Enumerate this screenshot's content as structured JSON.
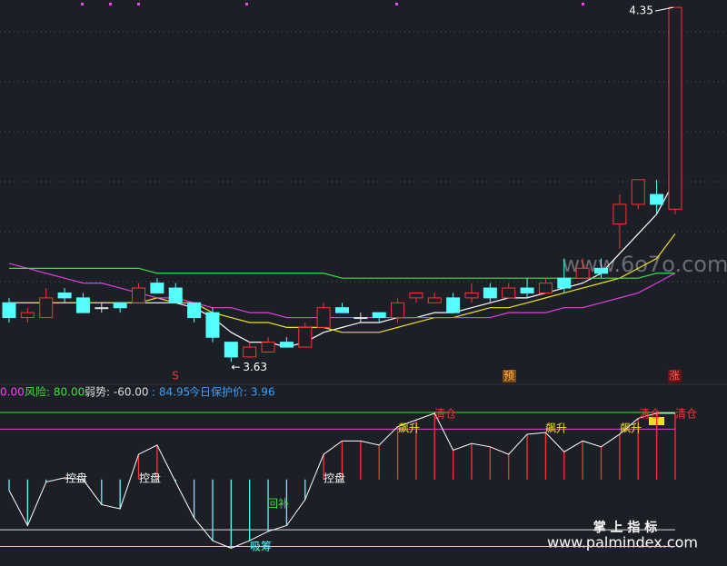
{
  "chart_data": [
    {
      "type": "candlestick",
      "ylim": [
        3.59,
        4.365
      ],
      "up_color": "#ff3232",
      "down_color": "#54ffff",
      "doji_color": "#e0e0e0",
      "candles": [
        {
          "open": 3.75,
          "high": 3.76,
          "low": 3.71,
          "close": 3.72
        },
        {
          "open": 3.72,
          "high": 3.74,
          "low": 3.71,
          "close": 3.73
        },
        {
          "open": 3.72,
          "high": 3.78,
          "low": 3.72,
          "close": 3.76
        },
        {
          "open": 3.77,
          "high": 3.78,
          "low": 3.75,
          "close": 3.76
        },
        {
          "open": 3.76,
          "high": 3.77,
          "low": 3.73,
          "close": 3.73
        },
        {
          "open": 3.74,
          "high": 3.75,
          "low": 3.73,
          "close": 3.74
        },
        {
          "open": 3.75,
          "high": 3.75,
          "low": 3.73,
          "close": 3.74
        },
        {
          "open": 3.75,
          "high": 3.79,
          "low": 3.75,
          "close": 3.78
        },
        {
          "open": 3.79,
          "high": 3.8,
          "low": 3.77,
          "close": 3.77
        },
        {
          "open": 3.78,
          "high": 3.79,
          "low": 3.75,
          "close": 3.75
        },
        {
          "open": 3.75,
          "high": 3.75,
          "low": 3.71,
          "close": 3.72
        },
        {
          "open": 3.73,
          "high": 3.74,
          "low": 3.67,
          "close": 3.68
        },
        {
          "open": 3.67,
          "high": 3.67,
          "low": 3.63,
          "close": 3.64
        },
        {
          "open": 3.64,
          "high": 3.67,
          "low": 3.64,
          "close": 3.66
        },
        {
          "open": 3.65,
          "high": 3.68,
          "low": 3.65,
          "close": 3.67
        },
        {
          "open": 3.67,
          "high": 3.68,
          "low": 3.66,
          "close": 3.66
        },
        {
          "open": 3.66,
          "high": 3.71,
          "low": 3.66,
          "close": 3.7
        },
        {
          "open": 3.7,
          "high": 3.75,
          "low": 3.7,
          "close": 3.74
        },
        {
          "open": 3.74,
          "high": 3.75,
          "low": 3.73,
          "close": 3.73
        },
        {
          "open": 3.72,
          "high": 3.73,
          "low": 3.71,
          "close": 3.72
        },
        {
          "open": 3.73,
          "high": 3.73,
          "low": 3.71,
          "close": 3.72
        },
        {
          "open": 3.72,
          "high": 3.76,
          "low": 3.71,
          "close": 3.75
        },
        {
          "open": 3.76,
          "high": 3.77,
          "low": 3.75,
          "close": 3.77
        },
        {
          "open": 3.75,
          "high": 3.77,
          "low": 3.75,
          "close": 3.76
        },
        {
          "open": 3.76,
          "high": 3.77,
          "low": 3.73,
          "close": 3.73
        },
        {
          "open": 3.76,
          "high": 3.79,
          "low": 3.75,
          "close": 3.77
        },
        {
          "open": 3.78,
          "high": 3.79,
          "low": 3.75,
          "close": 3.76
        },
        {
          "open": 3.76,
          "high": 3.79,
          "low": 3.76,
          "close": 3.78
        },
        {
          "open": 3.78,
          "high": 3.8,
          "low": 3.76,
          "close": 3.77
        },
        {
          "open": 3.77,
          "high": 3.8,
          "low": 3.77,
          "close": 3.79
        },
        {
          "open": 3.8,
          "high": 3.84,
          "low": 3.77,
          "close": 3.78
        },
        {
          "open": 3.8,
          "high": 3.84,
          "low": 3.8,
          "close": 3.82
        },
        {
          "open": 3.82,
          "high": 3.84,
          "low": 3.8,
          "close": 3.81
        },
        {
          "open": 3.91,
          "high": 3.97,
          "low": 3.86,
          "close": 3.95
        },
        {
          "open": 3.95,
          "high": 4.0,
          "low": 3.94,
          "close": 4.0
        },
        {
          "open": 3.97,
          "high": 4.0,
          "low": 3.93,
          "close": 3.95
        },
        {
          "open": 3.94,
          "high": 4.35,
          "low": 3.93,
          "close": 4.35
        }
      ],
      "series": [
        {
          "color": "#ffffff",
          "values": [
            3.75,
            3.75,
            3.75,
            3.75,
            3.75,
            3.75,
            3.75,
            3.75,
            3.75,
            3.75,
            3.74,
            3.72,
            3.69,
            3.67,
            3.67,
            3.66,
            3.67,
            3.69,
            3.7,
            3.71,
            3.71,
            3.72,
            3.72,
            3.73,
            3.73,
            3.74,
            3.75,
            3.76,
            3.76,
            3.77,
            3.78,
            3.79,
            3.81,
            3.85,
            3.89,
            3.93,
            4.0
          ]
        },
        {
          "color": "#f0e020",
          "values": [
            3.75,
            3.75,
            3.75,
            3.75,
            3.75,
            3.75,
            3.75,
            3.75,
            3.76,
            3.75,
            3.75,
            3.73,
            3.72,
            3.71,
            3.71,
            3.7,
            3.7,
            3.7,
            3.69,
            3.69,
            3.69,
            3.7,
            3.71,
            3.72,
            3.72,
            3.73,
            3.74,
            3.74,
            3.75,
            3.76,
            3.77,
            3.78,
            3.79,
            3.8,
            3.82,
            3.84,
            3.89
          ]
        },
        {
          "color": "#e040e0",
          "values": [
            3.83,
            3.82,
            3.81,
            3.8,
            3.79,
            3.79,
            3.78,
            3.77,
            3.76,
            3.76,
            3.75,
            3.74,
            3.74,
            3.73,
            3.73,
            3.72,
            3.72,
            3.72,
            3.72,
            3.72,
            3.72,
            3.72,
            3.72,
            3.72,
            3.72,
            3.72,
            3.72,
            3.73,
            3.73,
            3.73,
            3.74,
            3.74,
            3.75,
            3.76,
            3.77,
            3.79,
            3.81
          ]
        },
        {
          "color": "#40e040",
          "values": [
            3.82,
            3.82,
            3.82,
            3.82,
            3.82,
            3.82,
            3.82,
            3.82,
            3.81,
            3.81,
            3.81,
            3.81,
            3.81,
            3.81,
            3.81,
            3.81,
            3.81,
            3.81,
            3.8,
            3.8,
            3.8,
            3.8,
            3.8,
            3.8,
            3.8,
            3.8,
            3.8,
            3.8,
            3.8,
            3.8,
            3.8,
            3.8,
            3.8,
            3.8,
            3.8,
            3.81,
            3.81
          ]
        }
      ],
      "signals": [
        {
          "text": "S",
          "color": "#ff3232"
        },
        {
          "text": "预",
          "color": "#ffb050"
        },
        {
          "text": "涨",
          "color": "#ff6060"
        }
      ],
      "watermark": "www.6o7o.com"
    },
    {
      "type": "indicator",
      "ylim": [
        -80,
        126
      ],
      "baseline": 20,
      "up_color": "#ff3232",
      "down_color": "#54ffff",
      "line_color": "#ffffff",
      "header": [
        {
          "text": "0.00",
          "color": "#ff40ff"
        },
        {
          "text": "风险: 80.00",
          "color": "#40e040"
        },
        {
          "text": "弱势: -60.00",
          "color": "#dddddd"
        },
        {
          "text": ": 84.95",
          "color": "#3aa0ff"
        },
        {
          "text": "今日保护价: 3.96",
          "color": "#3aa0ff"
        }
      ],
      "reference_lines": [
        {
          "value": 100,
          "color": "#40e040"
        },
        {
          "value": 80,
          "color": "#e040e0"
        },
        {
          "value": -40,
          "color": "#dddddd"
        },
        {
          "value": -60,
          "color": "#f0e020"
        }
      ],
      "values": [
        7,
        -35,
        17,
        22,
        20,
        -10,
        -15,
        50,
        61,
        17,
        -26,
        -53,
        -62,
        -53,
        -42,
        -35,
        -4,
        50,
        66,
        66,
        61,
        83,
        91,
        99,
        55,
        63,
        59,
        50,
        74,
        76,
        53,
        66,
        59,
        74,
        93,
        99,
        99
      ],
      "annotations": [
        {
          "text": "控盘",
          "color": "#ffffff"
        },
        {
          "text": "控盘",
          "color": "#ffffff"
        },
        {
          "text": "控盘",
          "color": "#ffffff"
        },
        {
          "text": "回补",
          "color": "#40e040"
        },
        {
          "text": "吸筹",
          "color": "#54ffff"
        },
        {
          "text": "飙升",
          "color": "#f0e020"
        },
        {
          "text": "飙升",
          "color": "#f0e020"
        },
        {
          "text": "飙升",
          "color": "#f0e020"
        },
        {
          "text": "清仓",
          "color": "#ff3232"
        },
        {
          "text": "清仓",
          "color": "#ff3232"
        },
        {
          "text": "清仓",
          "color": "#ff3232"
        }
      ]
    }
  ],
  "footer": {
    "brand": "掌 上 指 标",
    "url": "www.palmindex.com"
  }
}
